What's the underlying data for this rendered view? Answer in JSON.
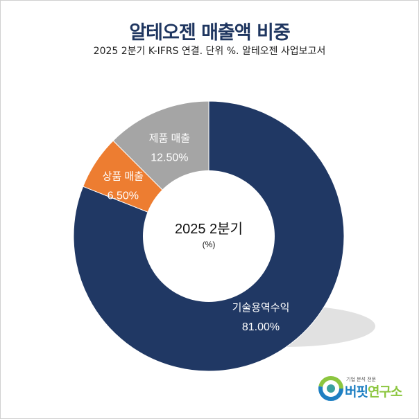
{
  "title": "알테오젠 매출액 비중",
  "subtitle": "2025 2분기 K-IFRS 연결. 단위 %. 알테오젠 사업보고서",
  "logo": {
    "tagline": "기업 분석 전문",
    "name_part1": "버핏",
    "name_part2": "연구소"
  },
  "chart_data": {
    "type": "pie",
    "donut": true,
    "center_label": "2025 2분기",
    "center_unit": "(%)",
    "categories": [
      "기술용역수익",
      "상품 매출",
      "제품 매출"
    ],
    "values": [
      81.0,
      6.5,
      12.5
    ],
    "value_labels": [
      "81.00%",
      "6.50%",
      "12.50%"
    ],
    "colors": [
      "#203864",
      "#ed7d31",
      "#a5a5a5"
    ],
    "start": "top",
    "direction": "clockwise"
  }
}
